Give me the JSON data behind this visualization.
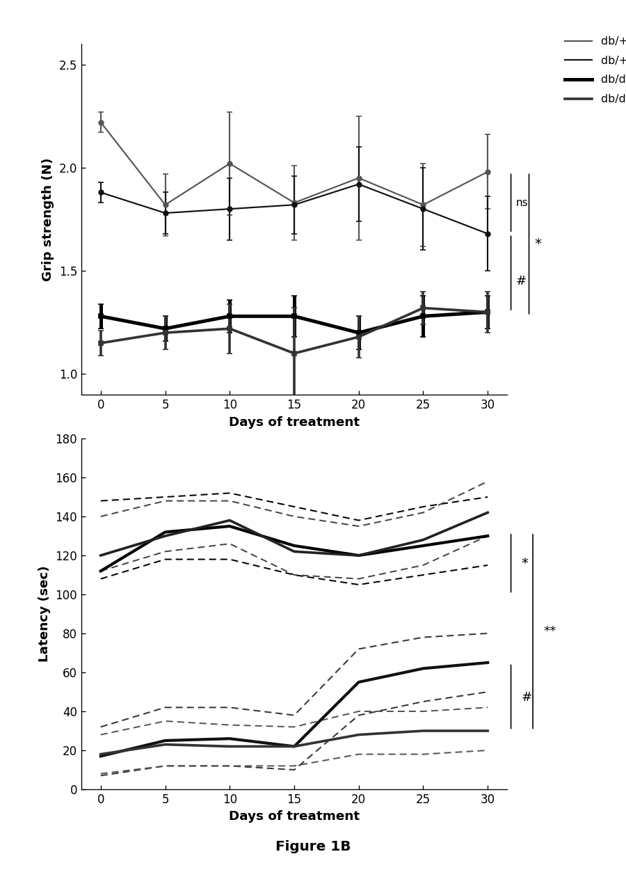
{
  "days": [
    0,
    5,
    10,
    15,
    20,
    25,
    30
  ],
  "grip_db_plus_vehicle_mean": [
    2.22,
    1.82,
    2.02,
    1.83,
    1.95,
    1.82,
    1.98
  ],
  "grip_db_plus_vehicle_err": [
    0.05,
    0.15,
    0.25,
    0.18,
    0.3,
    0.2,
    0.18
  ],
  "grip_db_plus_TRO_mean": [
    1.88,
    1.78,
    1.8,
    1.82,
    1.92,
    1.8,
    1.68
  ],
  "grip_db_plus_TRO_err": [
    0.05,
    0.1,
    0.15,
    0.14,
    0.18,
    0.2,
    0.18
  ],
  "grip_dbdb_vehicle_mean": [
    1.28,
    1.22,
    1.28,
    1.28,
    1.2,
    1.28,
    1.3
  ],
  "grip_dbdb_vehicle_err": [
    0.06,
    0.06,
    0.08,
    0.1,
    0.08,
    0.1,
    0.08
  ],
  "grip_dbdb_TRO_mean": [
    1.15,
    1.2,
    1.22,
    1.1,
    1.18,
    1.32,
    1.3
  ],
  "grip_dbdb_TRO_err": [
    0.06,
    0.08,
    0.12,
    0.22,
    0.1,
    0.08,
    0.1
  ],
  "lat_db_plus_vehicle_mean": [
    112,
    132,
    135,
    125,
    120,
    125,
    130
  ],
  "lat_db_plus_vehicle_upper": [
    148,
    150,
    152,
    145,
    138,
    145,
    150
  ],
  "lat_db_plus_vehicle_lower": [
    108,
    118,
    118,
    110,
    105,
    110,
    115
  ],
  "lat_db_plus_TRO_mean": [
    120,
    130,
    138,
    122,
    120,
    128,
    142
  ],
  "lat_db_plus_TRO_upper": [
    140,
    148,
    148,
    140,
    135,
    142,
    158
  ],
  "lat_db_plus_TRO_lower": [
    112,
    122,
    126,
    110,
    108,
    115,
    130
  ],
  "lat_dbdb_vehicle_mean": [
    17,
    25,
    26,
    22,
    55,
    62,
    65
  ],
  "lat_dbdb_vehicle_upper": [
    32,
    42,
    42,
    38,
    72,
    78,
    80
  ],
  "lat_dbdb_vehicle_lower": [
    7,
    12,
    12,
    10,
    38,
    45,
    50
  ],
  "lat_dbdb_TRO_mean": [
    18,
    23,
    22,
    22,
    28,
    30,
    30
  ],
  "lat_dbdb_TRO_upper": [
    28,
    35,
    33,
    32,
    40,
    40,
    42
  ],
  "lat_dbdb_TRO_lower": [
    8,
    12,
    12,
    12,
    18,
    18,
    20
  ],
  "figure_caption": "Figure 1B"
}
